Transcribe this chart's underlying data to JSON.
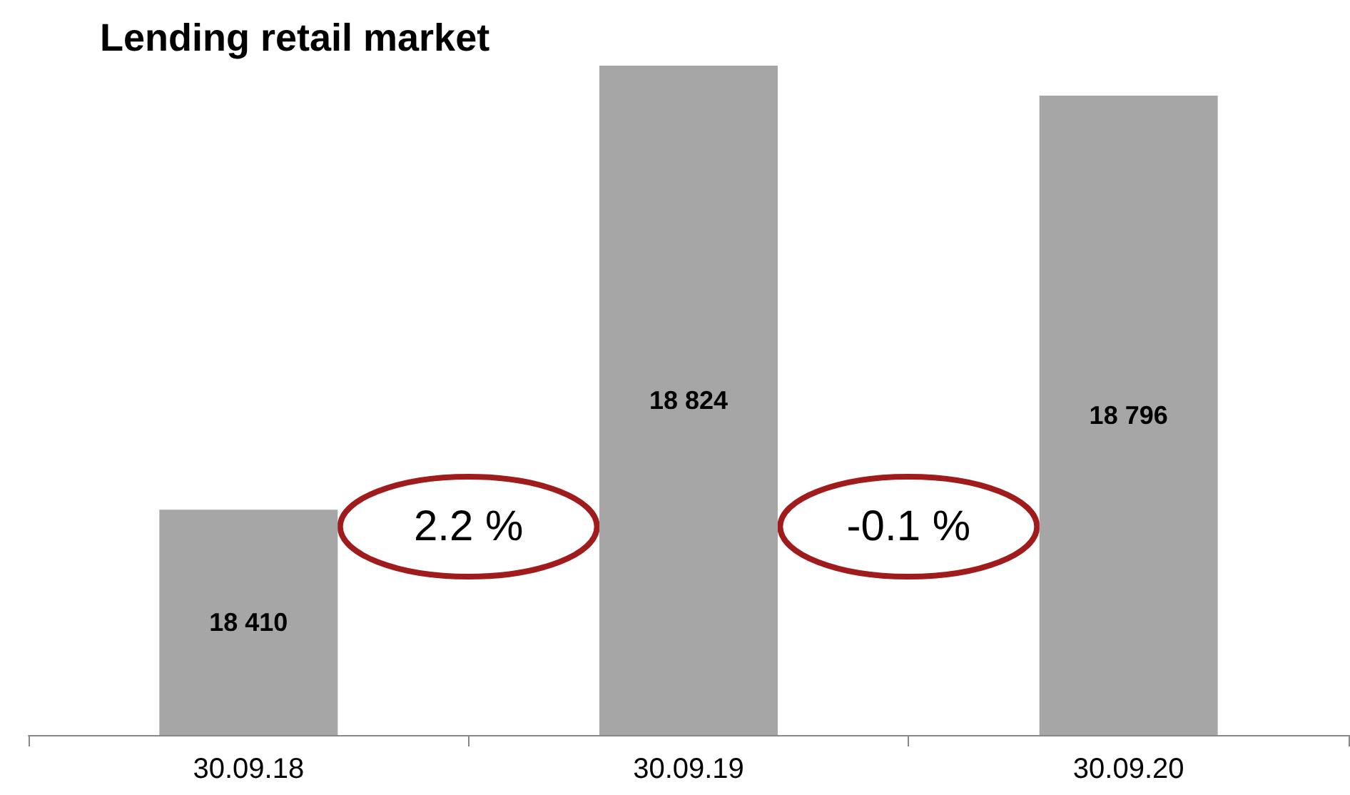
{
  "chart_data": {
    "type": "bar",
    "title": "Lending retail market",
    "categories": [
      "30.09.18",
      "30.09.19",
      "30.09.20"
    ],
    "values": [
      18410,
      18824,
      18796
    ],
    "value_labels": [
      "18 410",
      "18 824",
      "18 796"
    ],
    "color": "#a6a6a6",
    "annotations": [
      "2.2 %",
      "-0.1 %"
    ],
    "ylim": [
      18200,
      18824
    ],
    "grid": false
  }
}
